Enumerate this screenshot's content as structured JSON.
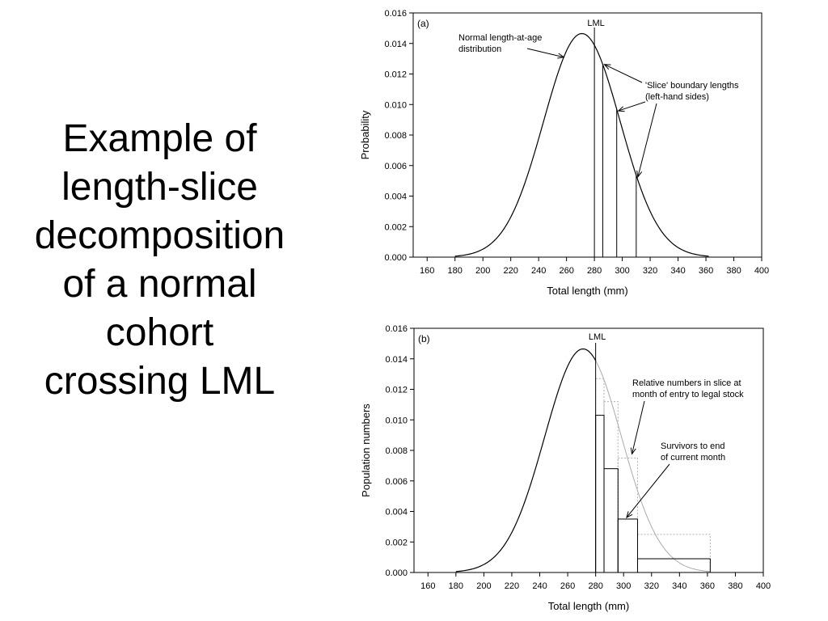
{
  "slide": {
    "title_lines": [
      "Example of",
      "length-slice",
      "decomposition",
      "of a normal",
      "cohort",
      "crossing LML"
    ]
  },
  "colors": {
    "curve": "#000000",
    "faded_curve": "#aaaaaa",
    "dotted_box": "#b0b0b0"
  },
  "chart_data": [
    {
      "type": "line",
      "panel_label": "(a)",
      "xlabel": "Total length (mm)",
      "ylabel": "Probability",
      "xlim": [
        150,
        400
      ],
      "ylim": [
        0,
        0.016
      ],
      "xticks": [
        160,
        180,
        200,
        220,
        240,
        260,
        280,
        300,
        320,
        340,
        360,
        380,
        400
      ],
      "yticks": [
        "0.000",
        "0.002",
        "0.004",
        "0.006",
        "0.008",
        "0.010",
        "0.012",
        "0.014",
        "0.016"
      ],
      "curve": {
        "distribution": "normal",
        "mean": 271,
        "sd": 27.5,
        "peak": 0.01465,
        "x_range": [
          180,
          362
        ]
      },
      "slice_lines_x": [
        280,
        286,
        296,
        310
      ],
      "lml_x": 280,
      "lml_label": "LML",
      "annotations": [
        {
          "text": "Normal length-at-age\ndistribution",
          "point_x": 258
        },
        {
          "text": "'Slice' boundary lengths\n(left-hand sides)",
          "point_x": [
            286,
            296,
            310
          ]
        }
      ]
    },
    {
      "type": "bar",
      "panel_label": "(b)",
      "xlabel": "Total length (mm)",
      "ylabel": "Population numbers",
      "xlim": [
        150,
        400
      ],
      "ylim": [
        0,
        0.016
      ],
      "xticks": [
        160,
        180,
        200,
        220,
        240,
        260,
        280,
        300,
        320,
        340,
        360,
        380,
        400
      ],
      "yticks": [
        "0.000",
        "0.002",
        "0.004",
        "0.006",
        "0.008",
        "0.010",
        "0.012",
        "0.014",
        "0.016"
      ],
      "curve": {
        "distribution": "normal",
        "mean": 271,
        "sd": 27.5,
        "peak": 0.01465,
        "x_range": [
          180,
          362
        ],
        "faded_after_x": 280
      },
      "lml_x": 280,
      "lml_label": "LML",
      "survivor_bars": [
        {
          "x0": 280,
          "x1": 286,
          "value": 0.0103
        },
        {
          "x0": 286,
          "x1": 296,
          "value": 0.0068
        },
        {
          "x0": 296,
          "x1": 310,
          "value": 0.0035
        },
        {
          "x0": 310,
          "x1": 362,
          "value": 0.0009
        }
      ],
      "entry_bars": [
        {
          "x0": 280,
          "x1": 286,
          "value": 0.0127
        },
        {
          "x0": 286,
          "x1": 296,
          "value": 0.0112
        },
        {
          "x0": 296,
          "x1": 310,
          "value": 0.0075
        },
        {
          "x0": 310,
          "x1": 362,
          "value": 0.0025
        }
      ],
      "annotations": [
        {
          "text": "Relative numbers in slice at\nmonth of entry to legal stock",
          "point_x": 306,
          "point_y": 0.0075
        },
        {
          "text": "Survivors to end\nof current month",
          "point_x": 301,
          "point_y": 0.0036
        }
      ]
    }
  ]
}
